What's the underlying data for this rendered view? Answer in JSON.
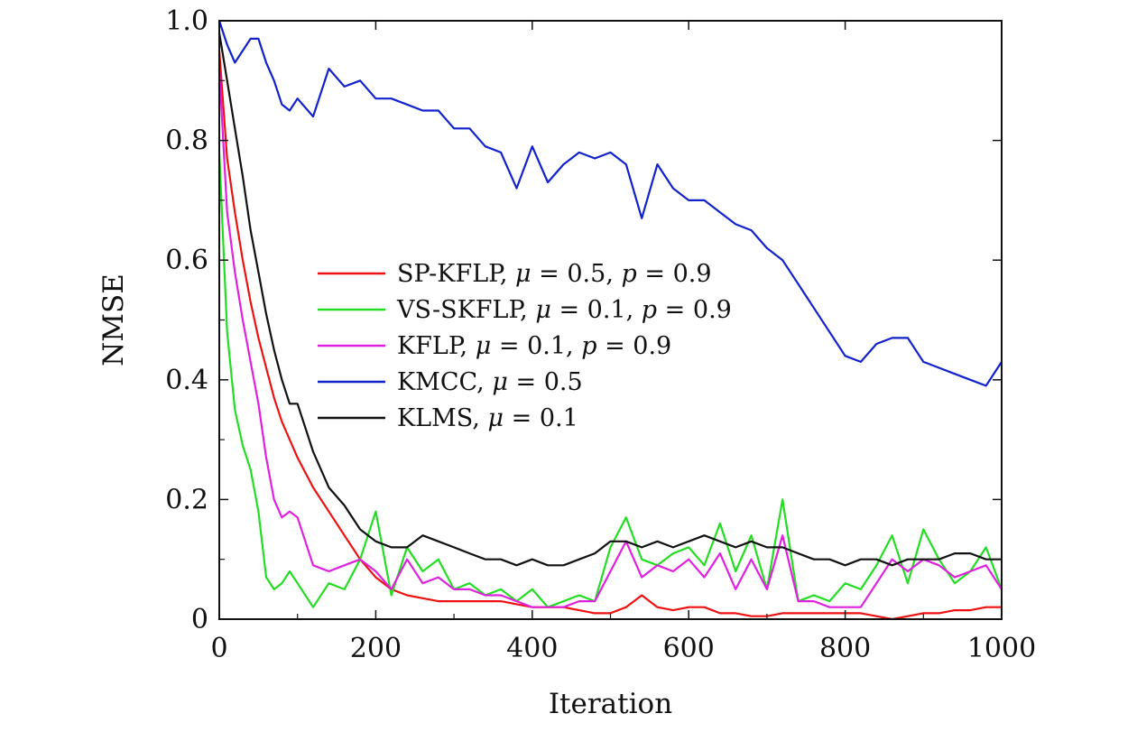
{
  "chart_data": {
    "type": "line",
    "title": "",
    "xlabel": "Iteration",
    "ylabel": "NMSE",
    "xlim": [
      0,
      1000
    ],
    "ylim": [
      0,
      1.0
    ],
    "x_ticks": [
      "0",
      "200",
      "400",
      "600",
      "800",
      "1000"
    ],
    "y_ticks": [
      "0",
      "0.2",
      "0.4",
      "0.6",
      "0.8",
      "1.0"
    ],
    "grid": false,
    "legend_position": "center-left",
    "x": [
      0,
      10,
      20,
      30,
      40,
      50,
      60,
      70,
      80,
      90,
      100,
      120,
      140,
      160,
      180,
      200,
      220,
      240,
      260,
      280,
      300,
      320,
      340,
      360,
      380,
      400,
      420,
      440,
      460,
      480,
      500,
      520,
      540,
      560,
      580,
      600,
      620,
      640,
      660,
      680,
      700,
      720,
      740,
      760,
      780,
      800,
      820,
      840,
      860,
      880,
      900,
      920,
      940,
      960,
      980,
      1000
    ],
    "series": [
      {
        "name": "SP-KFLP, μ = 0.5, p = 0.9",
        "color": "#ee1111",
        "values": [
          0.95,
          0.77,
          0.68,
          0.6,
          0.53,
          0.47,
          0.42,
          0.37,
          0.33,
          0.3,
          0.27,
          0.22,
          0.18,
          0.14,
          0.1,
          0.07,
          0.05,
          0.04,
          0.035,
          0.03,
          0.03,
          0.03,
          0.03,
          0.03,
          0.025,
          0.02,
          0.02,
          0.02,
          0.015,
          0.01,
          0.01,
          0.02,
          0.04,
          0.02,
          0.015,
          0.02,
          0.02,
          0.01,
          0.01,
          0.005,
          0.005,
          0.01,
          0.01,
          0.01,
          0.01,
          0.01,
          0.01,
          0.005,
          0.0,
          0.005,
          0.01,
          0.01,
          0.015,
          0.015,
          0.02,
          0.02
        ]
      },
      {
        "name": "VS-SKFLP, μ = 0.1, p = 0.9",
        "color": "#22dd22",
        "values": [
          0.78,
          0.48,
          0.35,
          0.29,
          0.25,
          0.18,
          0.07,
          0.05,
          0.06,
          0.08,
          0.06,
          0.02,
          0.06,
          0.05,
          0.1,
          0.18,
          0.04,
          0.12,
          0.08,
          0.1,
          0.05,
          0.06,
          0.04,
          0.05,
          0.03,
          0.05,
          0.02,
          0.03,
          0.04,
          0.03,
          0.12,
          0.17,
          0.1,
          0.09,
          0.11,
          0.12,
          0.09,
          0.16,
          0.08,
          0.14,
          0.05,
          0.2,
          0.03,
          0.04,
          0.03,
          0.06,
          0.05,
          0.09,
          0.14,
          0.06,
          0.15,
          0.1,
          0.06,
          0.08,
          0.12,
          0.05
        ]
      },
      {
        "name": "KFLP, μ = 0.1, p = 0.9",
        "color": "#e020e0",
        "values": [
          0.92,
          0.68,
          0.58,
          0.5,
          0.43,
          0.36,
          0.27,
          0.2,
          0.17,
          0.18,
          0.17,
          0.09,
          0.08,
          0.09,
          0.1,
          0.08,
          0.05,
          0.1,
          0.06,
          0.07,
          0.05,
          0.05,
          0.04,
          0.04,
          0.03,
          0.02,
          0.02,
          0.02,
          0.03,
          0.03,
          0.08,
          0.13,
          0.07,
          0.09,
          0.08,
          0.1,
          0.07,
          0.11,
          0.05,
          0.1,
          0.05,
          0.14,
          0.03,
          0.03,
          0.02,
          0.02,
          0.02,
          0.06,
          0.1,
          0.08,
          0.1,
          0.09,
          0.07,
          0.08,
          0.09,
          0.05
        ]
      },
      {
        "name": "KMCC, μ = 0.5",
        "color": "#1122cc",
        "values": [
          1.0,
          0.96,
          0.93,
          0.95,
          0.97,
          0.97,
          0.93,
          0.9,
          0.86,
          0.85,
          0.87,
          0.84,
          0.92,
          0.89,
          0.9,
          0.87,
          0.87,
          0.86,
          0.85,
          0.85,
          0.82,
          0.82,
          0.79,
          0.78,
          0.72,
          0.79,
          0.73,
          0.76,
          0.78,
          0.77,
          0.78,
          0.76,
          0.67,
          0.76,
          0.72,
          0.7,
          0.7,
          0.68,
          0.66,
          0.65,
          0.62,
          0.6,
          0.56,
          0.52,
          0.48,
          0.44,
          0.43,
          0.46,
          0.47,
          0.47,
          0.43,
          0.42,
          0.41,
          0.4,
          0.39,
          0.43
        ]
      },
      {
        "name": "KLMS, μ = 0.1",
        "color": "#111111",
        "values": [
          0.98,
          0.9,
          0.82,
          0.74,
          0.65,
          0.58,
          0.51,
          0.45,
          0.4,
          0.36,
          0.36,
          0.28,
          0.22,
          0.19,
          0.15,
          0.13,
          0.12,
          0.12,
          0.14,
          0.13,
          0.12,
          0.11,
          0.1,
          0.1,
          0.09,
          0.1,
          0.09,
          0.09,
          0.1,
          0.11,
          0.13,
          0.13,
          0.12,
          0.13,
          0.12,
          0.13,
          0.14,
          0.13,
          0.12,
          0.13,
          0.12,
          0.12,
          0.11,
          0.1,
          0.1,
          0.09,
          0.1,
          0.1,
          0.09,
          0.1,
          0.1,
          0.1,
          0.11,
          0.11,
          0.1,
          0.1
        ]
      }
    ],
    "legend": [
      {
        "prefix": "SP-KFLP, ",
        "mu": "0.5",
        "p": "0.9"
      },
      {
        "prefix": "VS-SKFLP, ",
        "mu": "0.1",
        "p": "0.9"
      },
      {
        "prefix": "KFLP, ",
        "mu": "0.1",
        "p": "0.9"
      },
      {
        "prefix": "KMCC, ",
        "mu": "0.5",
        "p": ""
      },
      {
        "prefix": "KLMS, ",
        "mu": "0.1",
        "p": ""
      }
    ],
    "symbols": {
      "mu": "μ",
      "p": "p",
      "eq": " = ",
      "sep": ", "
    }
  }
}
